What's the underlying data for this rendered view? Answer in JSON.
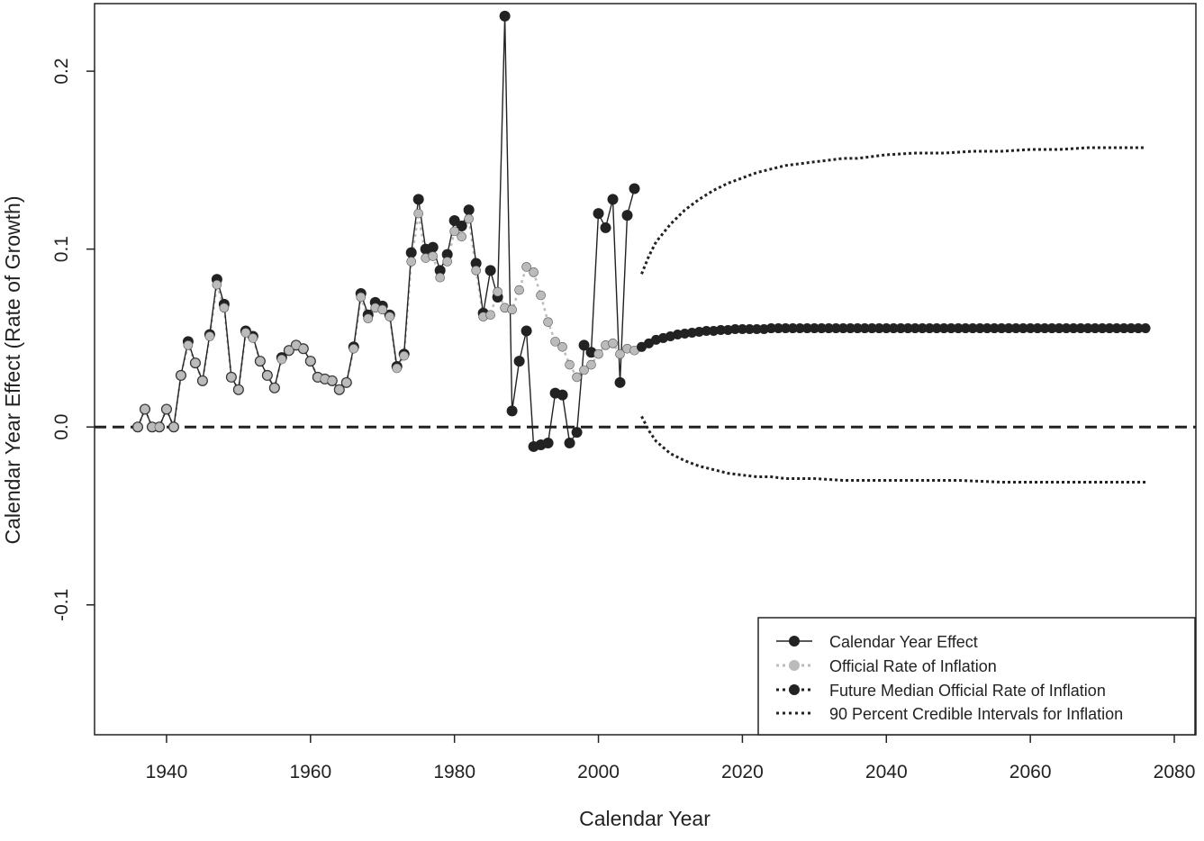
{
  "chart_data": {
    "type": "line",
    "title": "",
    "xlabel": "Calendar Year",
    "ylabel": "Calendar Year Effect (Rate of Growth)",
    "xlim": [
      1930,
      2083
    ],
    "ylim": [
      -0.173,
      0.238
    ],
    "x_ticks": [
      1940,
      1960,
      1980,
      2000,
      2020,
      2040,
      2060,
      2080
    ],
    "y_ticks": [
      -0.1,
      0.0,
      0.1,
      0.2
    ],
    "x_tick_labels": [
      "1940",
      "1960",
      "1980",
      "2000",
      "2020",
      "2040",
      "2060",
      "2080"
    ],
    "y_tick_labels": [
      "-0.1",
      "0.0",
      "0.1",
      "0.2"
    ],
    "reference_line": {
      "y": 0.0,
      "style": "dashed"
    },
    "grid": false,
    "legend_position": "bottom-right",
    "legend": [
      {
        "label": "Calendar Year Effect",
        "style": "solid-black-filled-circle"
      },
      {
        "label": "Official Rate of Inflation",
        "style": "dotted-gray-filled-circle"
      },
      {
        "label": "Future Median Official Rate of Inflation",
        "style": "dotted-black-filled-circle"
      },
      {
        "label": "90 Percent Credible Intervals for Inflation",
        "style": "dotted-black-line"
      }
    ],
    "colors": {
      "calendar_effect": "#222222",
      "official_inflation": "#bbbbbb",
      "future_median": "#222222",
      "interval": "#222222"
    },
    "series": [
      {
        "name": "Calendar Year Effect",
        "x": [
          1936,
          1937,
          1938,
          1939,
          1940,
          1941,
          1942,
          1943,
          1944,
          1945,
          1946,
          1947,
          1948,
          1949,
          1950,
          1951,
          1952,
          1953,
          1954,
          1955,
          1956,
          1957,
          1958,
          1959,
          1960,
          1961,
          1962,
          1963,
          1964,
          1965,
          1966,
          1967,
          1968,
          1969,
          1970,
          1971,
          1972,
          1973,
          1974,
          1975,
          1976,
          1977,
          1978,
          1979,
          1980,
          1981,
          1982,
          1983,
          1984,
          1985,
          1986,
          1987,
          1988,
          1989,
          1990,
          1991,
          1992,
          1993,
          1994,
          1995,
          1996,
          1997,
          1998,
          1999,
          2000,
          2001,
          2002,
          2003,
          2004,
          2005
        ],
        "y": [
          0.0,
          0.01,
          0.0,
          0.0,
          0.01,
          0.0,
          0.029,
          0.048,
          0.036,
          0.026,
          0.052,
          0.083,
          0.069,
          0.028,
          0.021,
          0.054,
          0.051,
          0.037,
          0.029,
          0.022,
          0.039,
          0.043,
          0.046,
          0.044,
          0.037,
          0.028,
          0.027,
          0.026,
          0.021,
          0.025,
          0.045,
          0.075,
          0.063,
          0.07,
          0.068,
          0.063,
          0.034,
          0.041,
          0.098,
          0.128,
          0.1,
          0.101,
          0.088,
          0.097,
          0.116,
          0.113,
          0.122,
          0.092,
          0.064,
          0.088,
          0.073,
          0.231,
          0.009,
          0.037,
          0.054,
          -0.011,
          -0.01,
          -0.009,
          0.019,
          0.018,
          -0.009,
          -0.003,
          0.046,
          0.042,
          0.12,
          0.112,
          0.128,
          0.025,
          0.119,
          0.134
        ]
      },
      {
        "name": "Official Rate of Inflation",
        "x": [
          1936,
          1937,
          1938,
          1939,
          1940,
          1941,
          1942,
          1943,
          1944,
          1945,
          1946,
          1947,
          1948,
          1949,
          1950,
          1951,
          1952,
          1953,
          1954,
          1955,
          1956,
          1957,
          1958,
          1959,
          1960,
          1961,
          1962,
          1963,
          1964,
          1965,
          1966,
          1967,
          1968,
          1969,
          1970,
          1971,
          1972,
          1973,
          1974,
          1975,
          1976,
          1977,
          1978,
          1979,
          1980,
          1981,
          1982,
          1983,
          1984,
          1985,
          1986,
          1987,
          1988,
          1989,
          1990,
          1991,
          1992,
          1993,
          1994,
          1995,
          1996,
          1997,
          1998,
          1999,
          2000,
          2001,
          2002,
          2003,
          2004,
          2005
        ],
        "y": [
          0.0,
          0.01,
          0.0,
          0.0,
          0.01,
          0.0,
          0.029,
          0.046,
          0.036,
          0.026,
          0.051,
          0.08,
          0.067,
          0.028,
          0.021,
          0.053,
          0.05,
          0.037,
          0.029,
          0.022,
          0.038,
          0.043,
          0.046,
          0.044,
          0.037,
          0.028,
          0.027,
          0.026,
          0.021,
          0.025,
          0.044,
          0.073,
          0.061,
          0.067,
          0.066,
          0.062,
          0.033,
          0.04,
          0.093,
          0.12,
          0.095,
          0.096,
          0.084,
          0.093,
          0.11,
          0.107,
          0.117,
          0.088,
          0.062,
          0.063,
          0.076,
          0.067,
          0.066,
          0.077,
          0.09,
          0.087,
          0.074,
          0.059,
          0.048,
          0.045,
          0.035,
          0.028,
          0.032,
          0.035,
          0.041,
          0.046,
          0.047,
          0.041,
          0.044,
          0.043
        ]
      },
      {
        "name": "Future Median Official Rate of Inflation",
        "x_start": 2006,
        "x_end": 2076,
        "y": [
          0.045,
          0.047,
          0.049,
          0.05,
          0.051,
          0.052,
          0.0525,
          0.053,
          0.0535,
          0.054,
          0.054,
          0.0545,
          0.0545,
          0.055,
          0.055,
          0.055,
          0.055,
          0.055,
          0.0555,
          0.0555,
          0.0555,
          0.0555,
          0.0555,
          0.0555,
          0.0555,
          0.0555,
          0.0555,
          0.0555,
          0.0555,
          0.0555,
          0.0555,
          0.0555,
          0.0555,
          0.0555,
          0.0555,
          0.0555,
          0.0555,
          0.0555,
          0.0555,
          0.0555,
          0.0555,
          0.0555,
          0.0555,
          0.0555,
          0.0555,
          0.0555,
          0.0555,
          0.0555,
          0.0555,
          0.0555,
          0.0555,
          0.0555,
          0.0555,
          0.0555,
          0.0555,
          0.0555,
          0.0555,
          0.0555,
          0.0555,
          0.0555,
          0.0555,
          0.0555,
          0.0555,
          0.0555,
          0.0555,
          0.0555,
          0.0555,
          0.0555,
          0.0555,
          0.0555,
          0.0555
        ]
      },
      {
        "name": "90 Percent Credible Intervals for Inflation (upper)",
        "x": [
          2006,
          2007,
          2008,
          2010,
          2012,
          2014,
          2016,
          2018,
          2020,
          2022,
          2024,
          2026,
          2028,
          2030,
          2032,
          2034,
          2036,
          2038,
          2040,
          2044,
          2048,
          2052,
          2056,
          2060,
          2064,
          2068,
          2072,
          2076
        ],
        "y": [
          0.086,
          0.096,
          0.104,
          0.114,
          0.122,
          0.128,
          0.133,
          0.137,
          0.14,
          0.143,
          0.145,
          0.147,
          0.148,
          0.149,
          0.15,
          0.151,
          0.151,
          0.152,
          0.153,
          0.154,
          0.154,
          0.155,
          0.155,
          0.156,
          0.156,
          0.157,
          0.157,
          0.157
        ]
      },
      {
        "name": "90 Percent Credible Intervals for Inflation (lower)",
        "x": [
          2006,
          2007,
          2008,
          2010,
          2012,
          2014,
          2016,
          2018,
          2020,
          2022,
          2024,
          2026,
          2028,
          2030,
          2034,
          2038,
          2042,
          2046,
          2050,
          2056,
          2062,
          2068,
          2072,
          2076
        ],
        "y": [
          0.006,
          -0.002,
          -0.008,
          -0.015,
          -0.019,
          -0.022,
          -0.024,
          -0.026,
          -0.027,
          -0.028,
          -0.028,
          -0.029,
          -0.029,
          -0.029,
          -0.03,
          -0.03,
          -0.03,
          -0.03,
          -0.03,
          -0.031,
          -0.031,
          -0.031,
          -0.031,
          -0.031
        ]
      }
    ]
  }
}
